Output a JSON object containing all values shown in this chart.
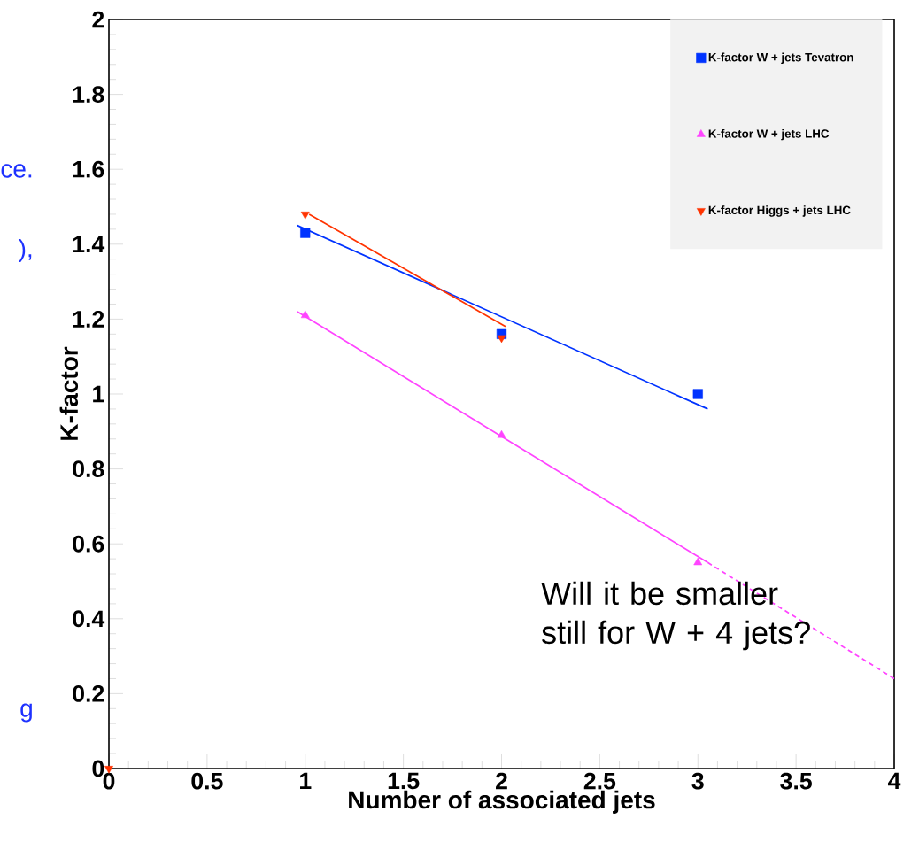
{
  "chart_data": {
    "type": "scatter",
    "xlabel": "Number of associated jets",
    "ylabel": "K-factor",
    "xlim": [
      0,
      4
    ],
    "ylim": [
      0,
      2
    ],
    "xticks": [
      0,
      0.5,
      1,
      1.5,
      2,
      2.5,
      3,
      3.5,
      4
    ],
    "yticks": [
      0,
      0.2,
      0.4,
      0.6,
      0.8,
      1,
      1.2,
      1.4,
      1.6,
      1.8,
      2
    ],
    "legend": "top right",
    "grid": false,
    "series": [
      {
        "name": "K-factor W + jets Tevatron",
        "color": "#0033ff",
        "marker": "square",
        "x": [
          1,
          2,
          3
        ],
        "values": [
          1.43,
          1.16,
          1.0
        ]
      },
      {
        "name": "K-factor W + jets LHC",
        "color": "#ff44ff",
        "marker": "triangle",
        "x": [
          1,
          2,
          3
        ],
        "values": [
          1.21,
          0.89,
          0.55
        ]
      },
      {
        "name": "K-factor Higgs + jets LHC",
        "color": "#ff3300",
        "marker": "triangle-down",
        "x": [
          0,
          1,
          2
        ],
        "values": [
          0,
          1.48,
          1.15
        ]
      },
      {
        "type": "line",
        "color": "#0033ff",
        "marker": "none",
        "line_style": "solid",
        "x": [
          0.96,
          3.05
        ],
        "values": [
          1.45,
          0.96
        ]
      },
      {
        "type": "line",
        "color": "#ff3300",
        "marker": "none",
        "line_style": "solid",
        "x": [
          1.02,
          2.02
        ],
        "values": [
          1.48,
          1.18
        ]
      },
      {
        "type": "line",
        "color": "#ff44ff",
        "marker": "none",
        "line_style": "solid",
        "x": [
          0.96,
          3.05
        ],
        "values": [
          1.22,
          0.55
        ]
      },
      {
        "type": "line",
        "color": "#ff44ff",
        "marker": "none",
        "line_style": "dashed",
        "x": [
          3.05,
          4
        ],
        "values": [
          0.55,
          0.24
        ]
      }
    ],
    "annotations": [
      "Will it be smaller still for W + 4 jets?",
      "ce.",
      "),",
      "g"
    ]
  }
}
